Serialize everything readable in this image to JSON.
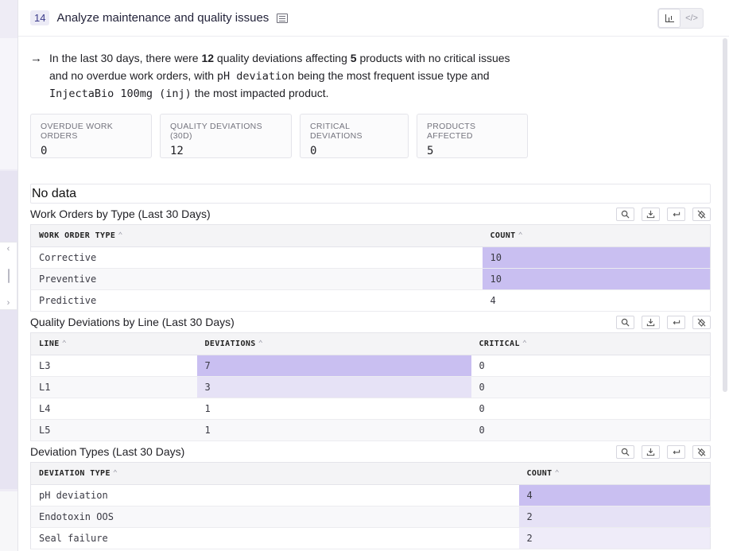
{
  "header": {
    "step_number": "14",
    "title": "Analyze maintenance and quality issues",
    "view_icons": [
      "chart-icon",
      "code-icon"
    ]
  },
  "summary": {
    "arrow": "→",
    "part1": "In the last 30 days, there were ",
    "quality_deviations": "12",
    "part2": " quality deviations affecting ",
    "products": "5",
    "part3": " products with no critical issues and no overdue work orders, with ",
    "top_issue": "pH deviation",
    "part4": " being the most frequent issue type and ",
    "top_product": "InjectaBio 100mg (inj)",
    "part5": " the most impacted product."
  },
  "metrics": [
    {
      "label": "OVERDUE WORK ORDERS",
      "value": "0"
    },
    {
      "label": "QUALITY DEVIATIONS (30D)",
      "value": "12"
    },
    {
      "label": "CRITICAL DEVIATIONS",
      "value": "0"
    },
    {
      "label": "PRODUCTS AFFECTED",
      "value": "5"
    }
  ],
  "no_data": "No data",
  "work_orders": {
    "title": "Work Orders by Type (Last 30 Days)",
    "columns": [
      "WORK ORDER TYPE",
      "COUNT"
    ],
    "rows": [
      {
        "type": "Corrective",
        "count": "10"
      },
      {
        "type": "Preventive",
        "count": "10"
      },
      {
        "type": "Predictive",
        "count": "4"
      }
    ]
  },
  "deviations_by_line": {
    "title": "Quality Deviations by Line (Last 30 Days)",
    "columns": [
      "LINE",
      "DEVIATIONS",
      "CRITICAL"
    ],
    "rows": [
      {
        "line": "L3",
        "deviations": "7",
        "critical": "0"
      },
      {
        "line": "L1",
        "deviations": "3",
        "critical": "0"
      },
      {
        "line": "L4",
        "deviations": "1",
        "critical": "0"
      },
      {
        "line": "L5",
        "deviations": "1",
        "critical": "0"
      }
    ]
  },
  "deviation_types": {
    "title": "Deviation Types (Last 30 Days)",
    "columns": [
      "DEVIATION TYPE",
      "COUNT"
    ],
    "rows": [
      {
        "type": "pH deviation",
        "count": "4"
      },
      {
        "type": "Endotoxin OOS",
        "count": "2"
      },
      {
        "type": "Seal failure",
        "count": "2"
      }
    ]
  },
  "table_tools": [
    "search-icon",
    "download-icon",
    "wrap-icon",
    "clear-format-icon"
  ],
  "colors": {
    "accent_strong": "#c9bff1",
    "accent_light": "#e6e2f6",
    "badge": "#ecebf6"
  }
}
